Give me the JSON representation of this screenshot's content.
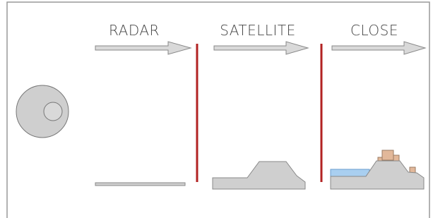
{
  "stages": [
    {
      "label": "RADAR"
    },
    {
      "label": "SATELLITE"
    },
    {
      "label": "CLOSE"
    }
  ]
}
